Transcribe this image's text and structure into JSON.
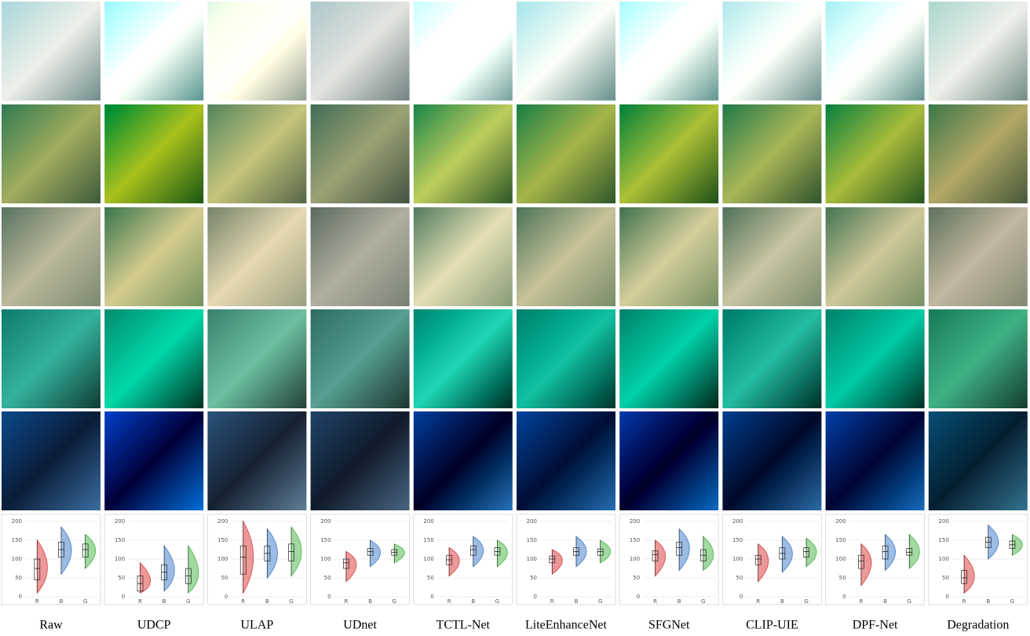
{
  "chart_data": [
    {
      "type": "box",
      "title": "Raw",
      "categories": [
        "R",
        "B",
        "G"
      ],
      "colors": [
        "#e05555",
        "#5b8fd0",
        "#62c062"
      ],
      "ylim": [
        0,
        200
      ],
      "yticks": [
        0,
        50,
        100,
        150,
        200
      ],
      "grid": true,
      "values": [
        [
          10,
          45,
          75,
          100,
          150
        ],
        [
          60,
          105,
          125,
          145,
          185
        ],
        [
          75,
          105,
          125,
          140,
          165
        ]
      ]
    },
    {
      "type": "box",
      "title": "UDCP",
      "categories": [
        "R",
        "B",
        "G"
      ],
      "colors": [
        "#e05555",
        "#5b8fd0",
        "#62c062"
      ],
      "ylim": [
        0,
        200
      ],
      "yticks": [
        0,
        50,
        100,
        150,
        200
      ],
      "grid": true,
      "values": [
        [
          10,
          15,
          35,
          55,
          90
        ],
        [
          15,
          45,
          65,
          85,
          135
        ],
        [
          10,
          35,
          55,
          75,
          135
        ]
      ]
    },
    {
      "type": "box",
      "title": "ULAP",
      "categories": [
        "R",
        "B",
        "G"
      ],
      "colors": [
        "#e05555",
        "#5b8fd0",
        "#62c062"
      ],
      "ylim": [
        0,
        200
      ],
      "yticks": [
        0,
        50,
        100,
        150,
        200
      ],
      "grid": true,
      "values": [
        [
          10,
          60,
          105,
          135,
          200
        ],
        [
          50,
          95,
          115,
          135,
          180
        ],
        [
          55,
          95,
          120,
          140,
          185
        ]
      ]
    },
    {
      "type": "box",
      "title": "UDnet",
      "categories": [
        "R",
        "B",
        "G"
      ],
      "colors": [
        "#e05555",
        "#5b8fd0",
        "#62c062"
      ],
      "ylim": [
        0,
        200
      ],
      "yticks": [
        0,
        50,
        100,
        150,
        200
      ],
      "grid": true,
      "values": [
        [
          40,
          75,
          90,
          100,
          120
        ],
        [
          80,
          110,
          120,
          128,
          150
        ],
        [
          90,
          110,
          118,
          125,
          140
        ]
      ]
    },
    {
      "type": "box",
      "title": "TCTL-Net",
      "categories": [
        "R",
        "B",
        "G"
      ],
      "colors": [
        "#e05555",
        "#5b8fd0",
        "#62c062"
      ],
      "ylim": [
        0,
        200
      ],
      "yticks": [
        0,
        50,
        100,
        150,
        200
      ],
      "grid": true,
      "values": [
        [
          55,
          85,
          98,
          110,
          130
        ],
        [
          80,
          110,
          125,
          135,
          160
        ],
        [
          80,
          110,
          120,
          130,
          150
        ]
      ]
    },
    {
      "type": "box",
      "title": "LiteEnhanceNet",
      "categories": [
        "R",
        "B",
        "G"
      ],
      "colors": [
        "#e05555",
        "#5b8fd0",
        "#62c062"
      ],
      "ylim": [
        0,
        200
      ],
      "yticks": [
        0,
        50,
        100,
        150,
        200
      ],
      "grid": true,
      "values": [
        [
          60,
          90,
          100,
          108,
          125
        ],
        [
          80,
          110,
          120,
          130,
          160
        ],
        [
          90,
          110,
          120,
          127,
          150
        ]
      ]
    },
    {
      "type": "box",
      "title": "SFGNet",
      "categories": [
        "R",
        "B",
        "G"
      ],
      "colors": [
        "#e05555",
        "#5b8fd0",
        "#62c062"
      ],
      "ylim": [
        0,
        200
      ],
      "yticks": [
        0,
        50,
        100,
        150,
        200
      ],
      "grid": true,
      "values": [
        [
          55,
          95,
          112,
          122,
          150
        ],
        [
          70,
          110,
          130,
          145,
          180
        ],
        [
          70,
          95,
          110,
          125,
          160
        ]
      ]
    },
    {
      "type": "box",
      "title": "CLIP-UIE",
      "categories": [
        "R",
        "B",
        "G"
      ],
      "colors": [
        "#e05555",
        "#5b8fd0",
        "#62c062"
      ],
      "ylim": [
        0,
        200
      ],
      "yticks": [
        0,
        50,
        100,
        150,
        200
      ],
      "grid": true,
      "values": [
        [
          40,
          85,
          100,
          110,
          140
        ],
        [
          65,
          100,
          115,
          130,
          160
        ],
        [
          80,
          105,
          120,
          130,
          155
        ]
      ]
    },
    {
      "type": "box",
      "title": "DPF-Net",
      "categories": [
        "R",
        "B",
        "G"
      ],
      "colors": [
        "#e05555",
        "#5b8fd0",
        "#62c062"
      ],
      "ylim": [
        0,
        200
      ],
      "yticks": [
        0,
        50,
        100,
        150,
        200
      ],
      "grid": true,
      "values": [
        [
          30,
          75,
          95,
          110,
          140
        ],
        [
          70,
          100,
          120,
          135,
          165
        ],
        [
          75,
          110,
          118,
          128,
          165
        ]
      ]
    },
    {
      "type": "box",
      "title": "Degradation",
      "categories": [
        "R",
        "B",
        "G"
      ],
      "colors": [
        "#e05555",
        "#5b8fd0",
        "#62c062"
      ],
      "ylim": [
        0,
        200
      ],
      "yticks": [
        0,
        50,
        100,
        150,
        200
      ],
      "grid": true,
      "values": [
        [
          10,
          35,
          50,
          70,
          110
        ],
        [
          100,
          130,
          145,
          158,
          190
        ],
        [
          110,
          128,
          138,
          148,
          165
        ]
      ]
    }
  ]
}
